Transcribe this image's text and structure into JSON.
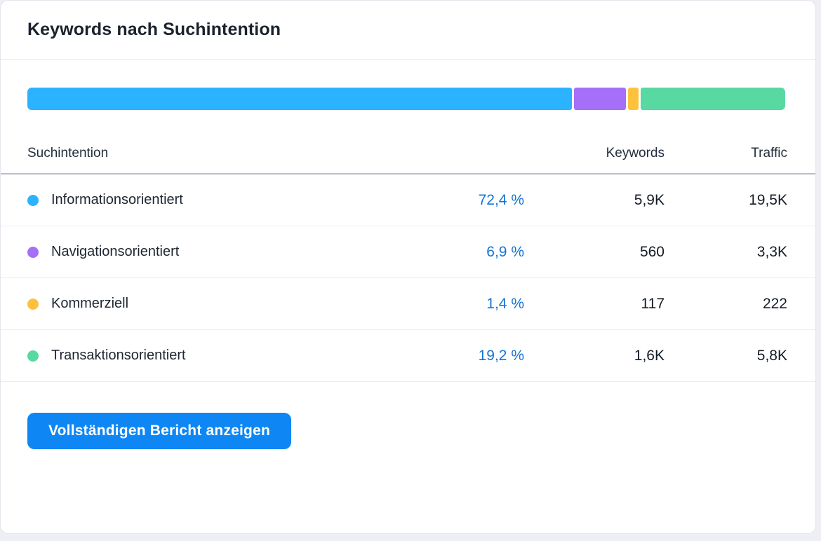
{
  "card": {
    "title": "Keywords nach Suchintention"
  },
  "chart_data": {
    "type": "bar",
    "variant": "stacked-horizontal",
    "categories": [
      "Informationsorientiert",
      "Navigationsorientiert",
      "Kommerziell",
      "Transaktionsorientiert"
    ],
    "values": [
      72.4,
      6.9,
      1.4,
      19.2
    ],
    "colors": [
      "#2bb3ff",
      "#a66ff7",
      "#fdc23d",
      "#57d9a1"
    ],
    "title": "Keywords nach Suchintention",
    "xlim": [
      0,
      100
    ],
    "legend": "table-below"
  },
  "bar": {
    "segments": [
      {
        "name": "informational",
        "percent": 72.4,
        "color": "#2bb3ff"
      },
      {
        "name": "navigational",
        "percent": 6.9,
        "color": "#a66ff7"
      },
      {
        "name": "commercial",
        "percent": 1.4,
        "color": "#fdc23d"
      },
      {
        "name": "transactional",
        "percent": 19.2,
        "color": "#57d9a1"
      }
    ]
  },
  "table": {
    "headers": {
      "intent": "Suchintention",
      "keywords": "Keywords",
      "traffic": "Traffic"
    },
    "rows": [
      {
        "label": "Informationsorientiert",
        "percent": "72,4 %",
        "keywords": "5,9K",
        "traffic": "19,5K",
        "color": "#2bb3ff"
      },
      {
        "label": "Navigationsorientiert",
        "percent": "6,9 %",
        "keywords": "560",
        "traffic": "3,3K",
        "color": "#a66ff7"
      },
      {
        "label": "Kommerziell",
        "percent": "1,4 %",
        "keywords": "117",
        "traffic": "222",
        "color": "#fdc23d"
      },
      {
        "label": "Transaktionsorientiert",
        "percent": "19,2 %",
        "keywords": "1,6K",
        "traffic": "5,8K",
        "color": "#57d9a1"
      }
    ]
  },
  "button": {
    "label": "Vollständigen Bericht anzeigen"
  }
}
